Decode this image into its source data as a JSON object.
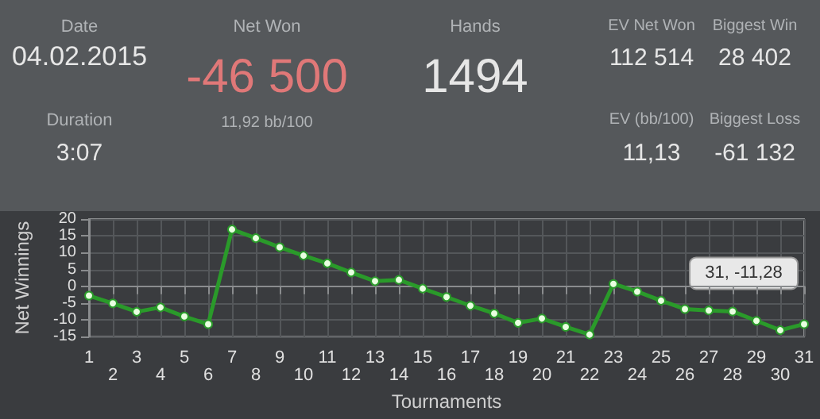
{
  "chart_data": [
    {
      "type": "other",
      "annotations": [
        "Date",
        "04.02.2015",
        "Net Won",
        "-46 500",
        "11,92 bb/100",
        "Hands",
        "1494",
        "EV Net Won",
        "112 514",
        "Biggest Win",
        "28 402",
        "Duration",
        "3:07",
        "EV (bb/100)",
        "11,13",
        "Biggest Loss",
        "-61 132"
      ]
    },
    {
      "type": "line",
      "xlabel": "Tournaments",
      "ylabel": "Net Winnings",
      "categories": [
        "1",
        "2",
        "3",
        "4",
        "5",
        "6",
        "7",
        "8",
        "9",
        "10",
        "11",
        "12",
        "13",
        "14",
        "15",
        "16",
        "17",
        "18",
        "19",
        "20",
        "21",
        "22",
        "23",
        "24",
        "25",
        "26",
        "27",
        "28",
        "29",
        "30",
        "31"
      ],
      "series": [
        {
          "color": "#2a9a2a",
          "values": [
            -2.8,
            -5.1,
            -7.6,
            -6.3,
            -9,
            -11.3,
            16.9,
            14.3,
            11.6,
            9.1,
            6.8,
            4.1,
            1.5,
            1.9,
            -0.7,
            -3.2,
            -5.8,
            -8.1,
            -10.9,
            -9.6,
            -12.1,
            -14.4,
            0.7,
            -1.6,
            -4.3,
            -6.8,
            -7.2,
            -7.5,
            -10.3,
            -13.1,
            -11.28
          ]
        }
      ],
      "ylim": [
        -15,
        20
      ],
      "yticks": [
        -15,
        -10,
        -5,
        0,
        5,
        10,
        15,
        20
      ],
      "grid": true,
      "marker": "circle",
      "line_style": "solid",
      "annotations": [
        {
          "text": "31, -11,28",
          "x": "31",
          "y": -11.28
        }
      ]
    }
  ]
}
